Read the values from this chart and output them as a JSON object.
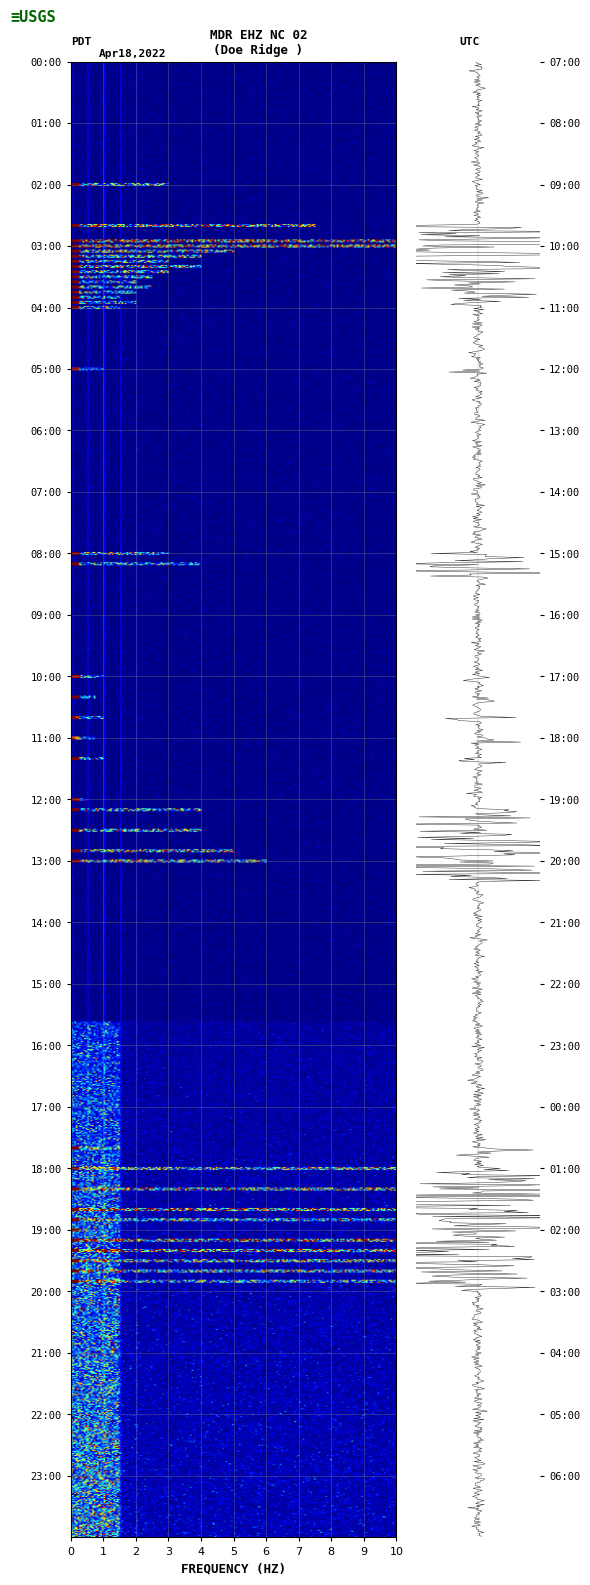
{
  "title_line1": "MDR EHZ NC 02",
  "title_line2": "(Doe Ridge )",
  "date_label": "Apr18,2022",
  "pdt_label": "PDT",
  "utc_label": "UTC",
  "xlabel": "FREQUENCY (HZ)",
  "freq_min": 0,
  "freq_max": 10,
  "freq_ticks": [
    0,
    1,
    2,
    3,
    4,
    5,
    6,
    7,
    8,
    9,
    10
  ],
  "pdt_tick_hours": [
    0,
    1,
    2,
    3,
    4,
    5,
    6,
    7,
    8,
    9,
    10,
    11,
    12,
    13,
    14,
    15,
    16,
    17,
    18,
    19,
    20,
    21,
    22,
    23
  ],
  "utc_tick_hours": [
    7,
    8,
    9,
    10,
    11,
    12,
    13,
    14,
    15,
    16,
    17,
    18,
    19,
    20,
    21,
    22,
    23,
    0,
    1,
    2,
    3,
    4,
    5,
    6
  ],
  "background_color": "#000080",
  "grid_color": "#808080",
  "fig_bg": "#ffffff",
  "usgs_green": "#006400"
}
